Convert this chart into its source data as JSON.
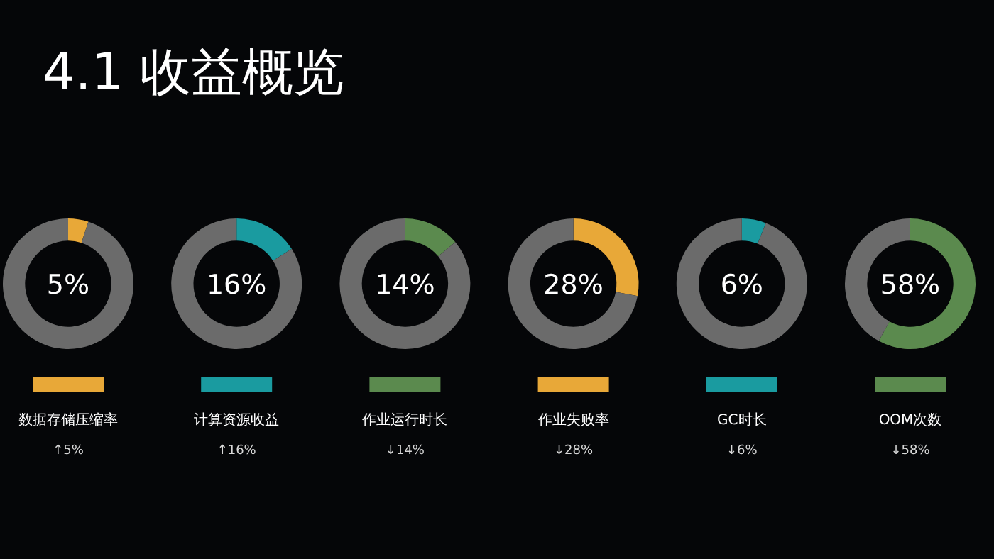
{
  "chart_data": [
    {
      "type": "other",
      "title": "4.1 收益概览"
    },
    {
      "type": "donut",
      "title": "数据存储压缩率",
      "categories": [
        null,
        null
      ],
      "values": [
        5,
        95
      ],
      "colors": [
        "#e8a838",
        "#6b6b6b"
      ],
      "annotations": [
        "5%",
        "↑5%"
      ]
    },
    {
      "type": "donut",
      "title": "计算资源收益",
      "categories": [
        null,
        null
      ],
      "values": [
        16,
        84
      ],
      "colors": [
        "#1a9ba0",
        "#6b6b6b"
      ],
      "annotations": [
        "16%",
        "↑16%"
      ]
    },
    {
      "type": "donut",
      "title": "作业运行时长",
      "categories": [
        null,
        null
      ],
      "values": [
        14,
        86
      ],
      "colors": [
        "#5b8a4e",
        "#6b6b6b"
      ],
      "annotations": [
        "14%",
        "↓14%"
      ]
    },
    {
      "type": "donut",
      "title": "作业失败率",
      "categories": [
        null,
        null
      ],
      "values": [
        28,
        72
      ],
      "colors": [
        "#e8a838",
        "#6b6b6b"
      ],
      "annotations": [
        "28%",
        "↓28%"
      ]
    },
    {
      "type": "donut",
      "title": "GC时长",
      "categories": [
        null,
        null
      ],
      "values": [
        6,
        94
      ],
      "colors": [
        "#1a9ba0",
        "#6b6b6b"
      ],
      "annotations": [
        "6%",
        "↓6%"
      ]
    },
    {
      "type": "donut",
      "title": "OOM次数",
      "categories": [
        null,
        null
      ],
      "values": [
        58,
        42
      ],
      "colors": [
        "#5b8a4e",
        "#6b6b6b"
      ],
      "annotations": [
        "58%",
        "↓58%"
      ]
    }
  ]
}
